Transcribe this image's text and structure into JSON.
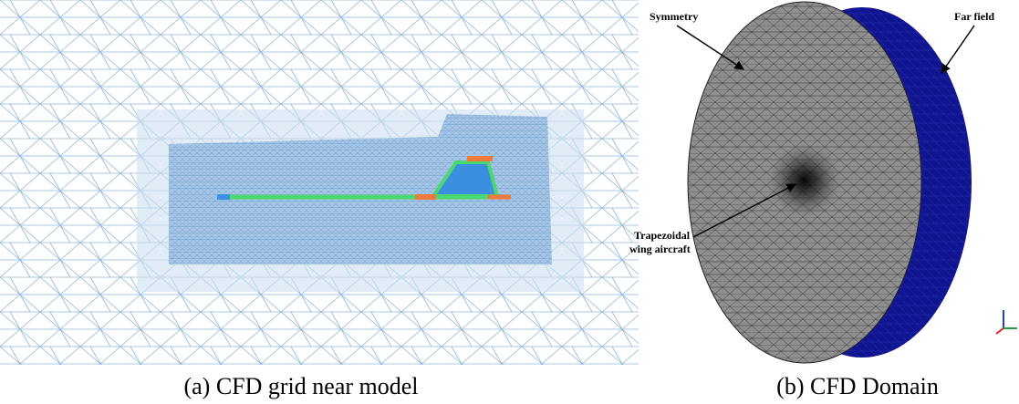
{
  "panels": [
    {
      "caption": "(a) CFD grid near model"
    },
    {
      "caption": "(b) CFD Domain",
      "labels": {
        "symmetry": "Symmetry",
        "far_field": "Far field",
        "aircraft": [
          "Trapezoidal",
          "wing aircraft"
        ]
      }
    }
  ]
}
